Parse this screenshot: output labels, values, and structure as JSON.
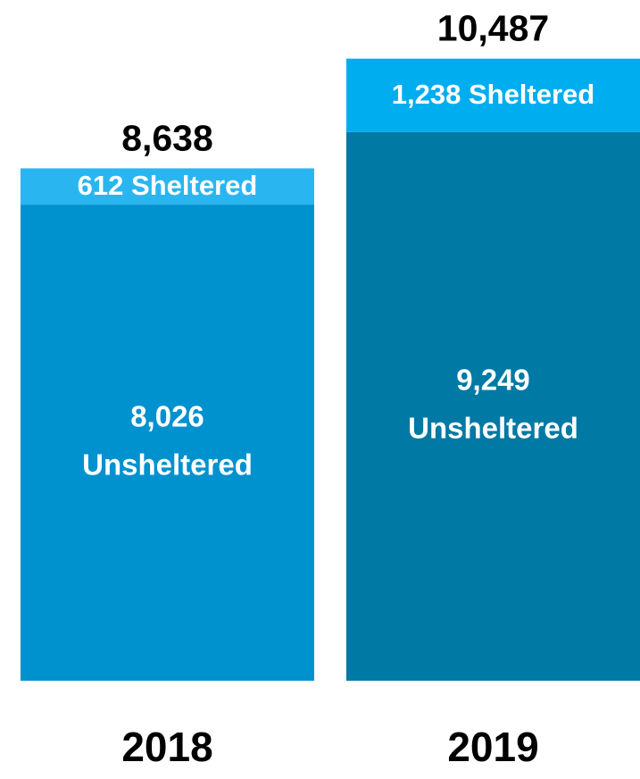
{
  "chart_data": {
    "type": "stacked-bar",
    "categories": [
      "2018",
      "2019"
    ],
    "series": [
      {
        "name": "Unsheltered",
        "colors": [
          "#0091cf",
          "#0079a4"
        ],
        "values": [
          8026,
          9249
        ],
        "value_labels": [
          "8,026",
          "9,249"
        ]
      },
      {
        "name": "Sheltered",
        "colors": [
          "#29b6f0",
          "#00aef0"
        ],
        "values": [
          612,
          1238
        ],
        "value_labels": [
          "612",
          "1,238"
        ]
      }
    ],
    "totals": {
      "values": [
        8638,
        10487
      ],
      "value_labels": [
        "8,638",
        "10,487"
      ]
    }
  }
}
